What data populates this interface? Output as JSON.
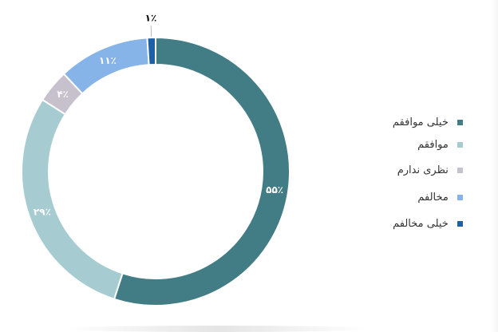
{
  "chart_data": {
    "type": "pie",
    "categories": [
      "خیلی موافقم",
      "موافقم",
      "نظری ندارم",
      "مخالفم",
      "خیلی مخالفم"
    ],
    "values": [
      55,
      29,
      4,
      11,
      1
    ],
    "labels": [
      "۵۵٪",
      "۲۹٪",
      "۴٪",
      "۱۱٪",
      "۱٪"
    ],
    "colors": [
      "#427C84",
      "#A6CCD2",
      "#C7C0CD",
      "#86B3E8",
      "#1D5FA8"
    ],
    "donut": true,
    "legend_position": "right"
  }
}
